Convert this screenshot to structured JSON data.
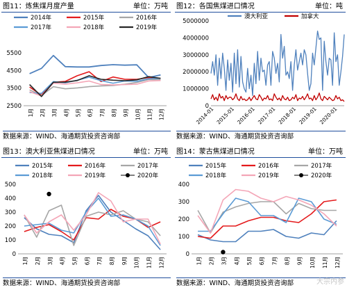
{
  "panels": [
    {
      "id": "p11",
      "title": "图11：炼焦煤月度产量",
      "unit": "单位：万吨",
      "source": "数据来源：WIND、海通期货投资咨询部",
      "chart_data": {
        "type": "line",
        "title": "图11：炼焦煤月度产量",
        "ylabel": "单位：万吨",
        "xlabel": "",
        "categories": [
          "1月",
          "2月",
          "3月",
          "4月",
          "5月",
          "6月",
          "7月",
          "8月",
          "9月",
          "10月",
          "11月",
          "12月"
        ],
        "ylim": [
          2500,
          5500
        ],
        "yticks": [
          2500,
          3500,
          4500,
          5500
        ],
        "grid": false,
        "legend": "top",
        "series": [
          {
            "name": "2014年",
            "color": "#4f81bd",
            "values": [
              4320,
              4620,
              5350,
              4720,
              4700,
              4700,
              4780,
              4830,
              4800,
              4820,
              4100,
              4250
            ]
          },
          {
            "name": "2015年",
            "color": "#e41a1c",
            "values": [
              3560,
              3100,
              3830,
              3880,
              4200,
              4430,
              3870,
              4130,
              4000,
              4000,
              4100,
              4050
            ]
          },
          {
            "name": "2016年",
            "color": "#a6a6a6",
            "values": [
              3400,
              3080,
              3580,
              3460,
              3510,
              3580,
              3620,
              3650,
              3720,
              3820,
              3990,
              3980
            ]
          },
          {
            "name": "2017年",
            "color": "#5b9bd5",
            "values": [
              3250,
              3200,
              3870,
              3800,
              3950,
              4120,
              3920,
              3780,
              3900,
              3880,
              4030,
              4050
            ]
          },
          {
            "name": "2018年",
            "color": "#f4a6b7",
            "values": [
              3300,
              3050,
              3780,
              3720,
              3800,
              3900,
              3700,
              3680,
              3700,
              3720,
              3900,
              3930
            ]
          },
          {
            "name": "2019年",
            "color": "#262626",
            "values": [
              3700,
              3020,
              3830,
              3840,
              3930,
              4200,
              4000,
              3950,
              3920,
              3970,
              4150,
              4050
            ]
          }
        ]
      }
    },
    {
      "id": "p12",
      "title": "图12：各国焦煤进口情况",
      "unit": "单位：吨",
      "source": "数据来源：WIND、海通期货投资咨询部",
      "chart_data": {
        "type": "line",
        "title": "图12：各国焦煤进口情况",
        "ylabel": "单位：吨",
        "xlabel": "",
        "x_ticks": [
          "2014-01",
          "2015-01",
          "2016-01",
          "2017-01",
          "2018-01",
          "2019-01",
          "2020-01"
        ],
        "ylim": [
          0,
          5000000
        ],
        "yticks": [
          0,
          1000000,
          2000000,
          3000000,
          4000000,
          5000000
        ],
        "grid": false,
        "legend": "top",
        "series": [
          {
            "name": "澳大利亚",
            "color": "#4f81bd",
            "values": [
              1900000,
              2600000,
              1800000,
              3000000,
              1200000,
              2800000,
              1600000,
              3100000,
              2200000,
              900000,
              2700000,
              1500000,
              2500000,
              800000,
              3100000,
              1300000,
              3300000,
              1100000,
              2900000,
              1400000,
              1000000,
              800000,
              2200000,
              1000000,
              1800000,
              600000,
              2500000,
              1300000,
              3200000,
              1500000,
              2800000,
              2000000,
              2100000,
              1200000,
              2400000,
              2600000,
              1200000,
              3200000,
              2800000,
              1900000,
              2500000,
              1400000,
              4200000,
              2800000,
              3500000,
              1800000,
              2000000,
              1600000,
              2600000,
              900000,
              2400000,
              3300000,
              2100000,
              2600000,
              3100000,
              2400000,
              3300000,
              3000000,
              1900000,
              900000,
              1300000,
              3100000,
              2400000,
              3400000,
              4400000,
              3900000,
              4000000,
              900000,
              3800000,
              2600000,
              1800000,
              2800000,
              2700000,
              1200000,
              4300000,
              2600000,
              3000000,
              1200000,
              2000000,
              2900000,
              4200000
            ]
          },
          {
            "name": "加拿大",
            "color": "#c00000",
            "values": [
              400000,
              650000,
              350000,
              500000,
              300000,
              700000,
              450000,
              550000,
              300000,
              600000,
              400000,
              500000,
              500000,
              350000,
              450000,
              700000,
              400000,
              300000,
              550000,
              350000,
              400000,
              300000,
              350000,
              500000,
              300000,
              450000,
              600000,
              400000,
              350000,
              650000,
              500000,
              300000,
              450000,
              400000,
              600000,
              350000,
              400000,
              300000,
              700000,
              500000,
              350000,
              450000,
              300000,
              600000,
              400000,
              350000,
              500000,
              300000,
              350000,
              500000,
              400000,
              650000,
              300000,
              450000,
              400000,
              550000,
              350000,
              500000,
              700000,
              400000,
              450000,
              300000,
              600000,
              350000,
              500000,
              750000,
              400000,
              300000,
              550000,
              450000,
              350000,
              500000,
              400000,
              300000,
              350000,
              600000,
              400000,
              500000,
              300000,
              350000,
              250000
            ]
          }
        ]
      }
    },
    {
      "id": "p13",
      "title": "图13：澳大利亚焦煤进口情况",
      "unit": "单位：万吨",
      "source": "数据来源：WIND、海通期货投资咨询部",
      "chart_data": {
        "type": "line",
        "title": "图13：澳大利亚焦煤进口情况",
        "ylabel": "单位：万吨",
        "xlabel": "",
        "categories": [
          "1月",
          "2月",
          "3月",
          "4月",
          "5月",
          "6月",
          "7月",
          "8月",
          "9月",
          "10月",
          "11月",
          "12月"
        ],
        "ylim": [
          0,
          500
        ],
        "yticks": [
          0,
          100,
          200,
          300,
          400,
          500
        ],
        "grid": false,
        "legend": "top",
        "series": [
          {
            "name": "2015年",
            "color": "#4f81bd",
            "values": [
              260,
              180,
              140,
              130,
              80,
              310,
              420,
              300,
              240,
              180,
              130,
              30
            ]
          },
          {
            "name": "2016年",
            "color": "#e41a1c",
            "values": [
              160,
              190,
              210,
              160,
              100,
              260,
              250,
              320,
              270,
              250,
              190,
              230
            ]
          },
          {
            "name": "2017年",
            "color": "#a6a6a6",
            "values": [
              280,
              120,
              310,
              350,
              60,
              270,
              300,
              280,
              310,
              250,
              230,
              130
            ]
          },
          {
            "name": "2018年",
            "color": "#5b9bd5",
            "values": [
              200,
              210,
              220,
              170,
              150,
              300,
              400,
              270,
              280,
              250,
              200,
              60
            ]
          },
          {
            "name": "2019年",
            "color": "#f4a6b7",
            "values": [
              280,
              150,
              230,
              280,
              170,
              280,
              440,
              380,
              230,
              250,
              250,
              70
            ]
          },
          {
            "name": "2020年",
            "color": "#000000",
            "marker": "point",
            "values": [
              null,
              null,
              430,
              null,
              null,
              null,
              null,
              null,
              null,
              null,
              null,
              null
            ]
          }
        ]
      }
    },
    {
      "id": "p14",
      "title": "图14：蒙古焦煤进口情况",
      "unit": "单位：万吨",
      "source": "数据来源：WIND、海通期货投资咨询部",
      "chart_data": {
        "type": "line",
        "title": "图14：蒙古焦煤进口情况",
        "ylabel": "单位：万吨",
        "xlabel": "",
        "categories": [
          "1月",
          "2月",
          "3月",
          "4月",
          "5月",
          "6月",
          "7月",
          "8月",
          "9月",
          "10月",
          "11月",
          "12月"
        ],
        "ylim": [
          0,
          400
        ],
        "yticks": [
          0,
          100,
          200,
          300,
          400
        ],
        "grid": false,
        "legend": "top",
        "series": [
          {
            "name": "2015年",
            "color": "#4f81bd",
            "values": [
              110,
              80,
              70,
              70,
              130,
              130,
              140,
              100,
              90,
              120,
              110,
              190
            ]
          },
          {
            "name": "2016年",
            "color": "#e41a1c",
            "values": [
              100,
              90,
              160,
              160,
              190,
              210,
              210,
              190,
              180,
              230,
              300,
              310
            ]
          },
          {
            "name": "2017年",
            "color": "#a6a6a6",
            "values": [
              250,
              120,
              240,
              270,
              290,
              300,
              300,
              230,
              290,
              260,
              250,
              250
            ]
          },
          {
            "name": "2018年",
            "color": "#5b9bd5",
            "values": [
              130,
              130,
              230,
              320,
              300,
              220,
              220,
              180,
              320,
              300,
              200,
              170
            ]
          },
          {
            "name": "2019年",
            "color": "#f4a6b7",
            "values": [
              220,
              120,
              310,
              370,
              360,
              320,
              300,
              330,
              310,
              280,
              230,
              160
            ]
          },
          {
            "name": "2020年",
            "color": "#000000",
            "marker": "point",
            "values": [
              null,
              null,
              10,
              null,
              null,
              null,
              null,
              null,
              null,
              null,
              null,
              null
            ]
          }
        ]
      }
    }
  ],
  "watermark": "大宗内参"
}
